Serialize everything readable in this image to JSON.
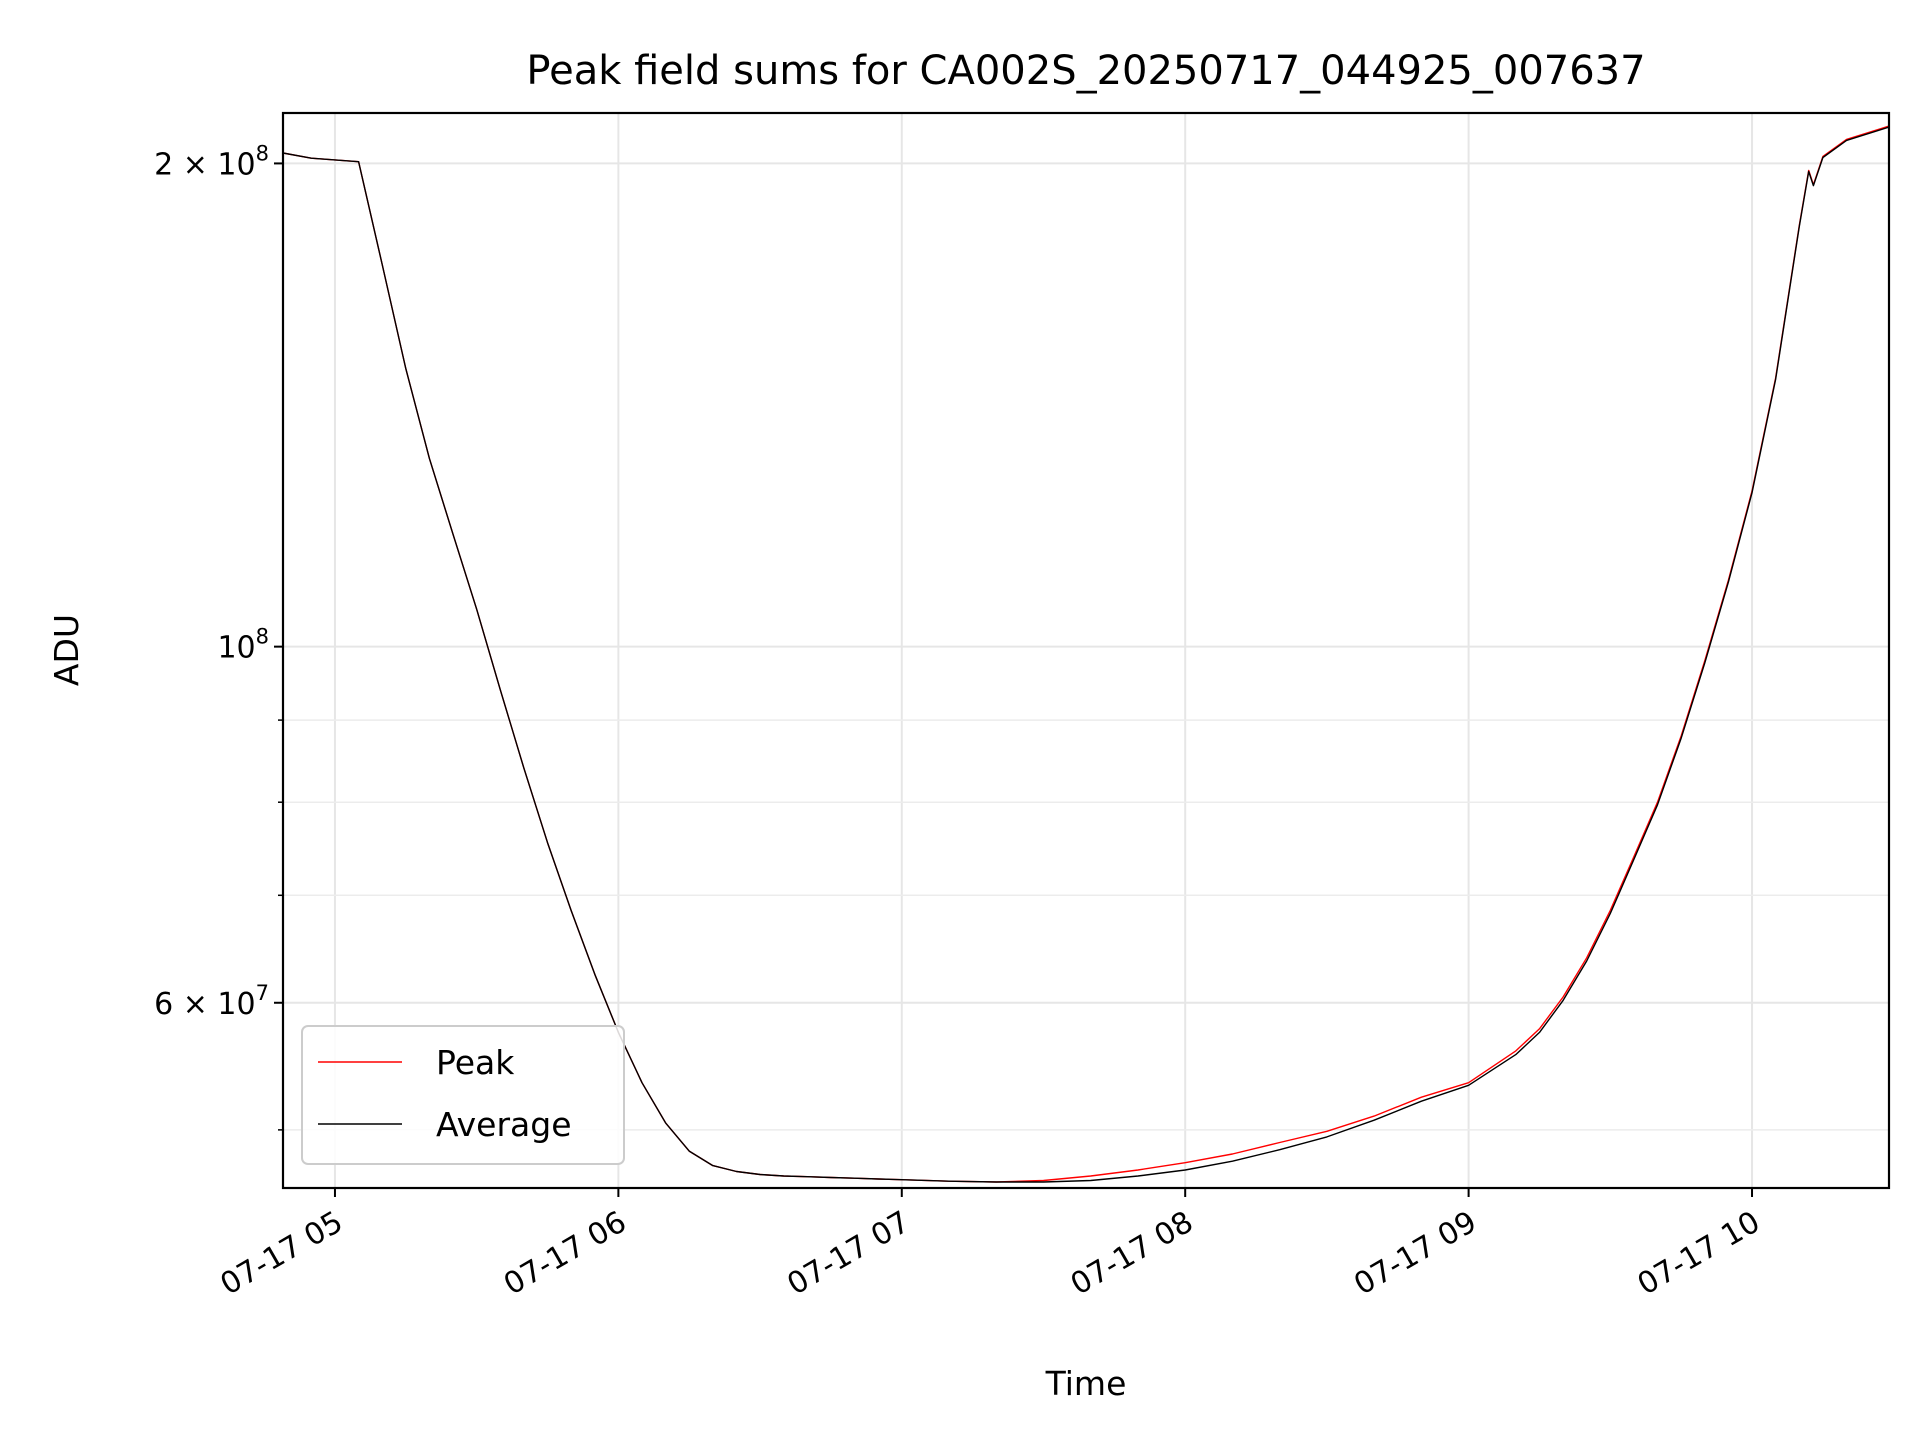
{
  "chart_data": {
    "type": "line",
    "title": "Peak field sums for CA002S_20250717_044925_007637",
    "xlabel": "Time",
    "ylabel": "ADU",
    "x_range": [
      "2025-07-17 04:49",
      "2025-07-17 10:29"
    ],
    "y_scale": "log",
    "ylim": [
      46000000,
      215000000
    ],
    "grid": true,
    "legend_position": "lower-left",
    "x_ticks": [
      {
        "value": "2025-07-17 05:00",
        "label": "07-17 05"
      },
      {
        "value": "2025-07-17 06:00",
        "label": "07-17 06"
      },
      {
        "value": "2025-07-17 07:00",
        "label": "07-17 07"
      },
      {
        "value": "2025-07-17 08:00",
        "label": "07-17 08"
      },
      {
        "value": "2025-07-17 09:00",
        "label": "07-17 09"
      },
      {
        "value": "2025-07-17 10:00",
        "label": "07-17 10"
      }
    ],
    "y_ticks": [
      {
        "value": 200000000,
        "base": "2 × 10",
        "exp": "8"
      },
      {
        "value": 100000000,
        "base": "10",
        "exp": "8"
      },
      {
        "value": 60000000,
        "base": "6 × 10",
        "exp": "7"
      }
    ],
    "y_minor_ticks": [
      50000000,
      70000000,
      80000000,
      90000000
    ],
    "series": [
      {
        "name": "Peak",
        "color": "#ff0000",
        "x": [
          "04:49",
          "04:55",
          "05:05",
          "05:10",
          "05:15",
          "05:20",
          "05:25",
          "05:30",
          "05:35",
          "05:40",
          "05:45",
          "05:50",
          "05:55",
          "06:00",
          "06:05",
          "06:10",
          "06:15",
          "06:20",
          "06:25",
          "06:30",
          "06:35",
          "06:40",
          "06:45",
          "06:50",
          "06:55",
          "07:00",
          "07:10",
          "07:20",
          "07:30",
          "07:40",
          "07:50",
          "08:00",
          "08:10",
          "08:20",
          "08:30",
          "08:40",
          "08:50",
          "09:00",
          "09:10",
          "09:15",
          "09:20",
          "09:25",
          "09:30",
          "09:35",
          "09:40",
          "09:45",
          "09:50",
          "09:55",
          "10:00",
          "10:05",
          "10:10",
          "10:12",
          "10:13",
          "10:15",
          "10:20",
          "10:29"
        ],
        "y": [
          203000000,
          201500000,
          200500000,
          173000000,
          149000000,
          131000000,
          117500000,
          105500000,
          94000000,
          84000000,
          75500000,
          68500000,
          62500000,
          57500000,
          53500000,
          50500000,
          48500000,
          47500000,
          47100000,
          46900000,
          46800000,
          46750000,
          46700000,
          46650000,
          46600000,
          46550000,
          46450000,
          46400000,
          46500000,
          46800000,
          47200000,
          47700000,
          48300000,
          49100000,
          49900000,
          51000000,
          52400000,
          53500000,
          56000000,
          57800000,
          60500000,
          64000000,
          68500000,
          74000000,
          80000000,
          88000000,
          98000000,
          110000000,
          125000000,
          147000000,
          183000000,
          198000000,
          194000000,
          202000000,
          207000000,
          211000000
        ]
      },
      {
        "name": "Average",
        "color": "#000000",
        "x": [
          "04:49",
          "04:55",
          "05:05",
          "05:10",
          "05:15",
          "05:20",
          "05:25",
          "05:30",
          "05:35",
          "05:40",
          "05:45",
          "05:50",
          "05:55",
          "06:00",
          "06:05",
          "06:10",
          "06:15",
          "06:20",
          "06:25",
          "06:30",
          "06:35",
          "06:40",
          "06:45",
          "06:50",
          "06:55",
          "07:00",
          "07:10",
          "07:20",
          "07:30",
          "07:40",
          "07:50",
          "08:00",
          "08:10",
          "08:20",
          "08:30",
          "08:40",
          "08:50",
          "09:00",
          "09:10",
          "09:15",
          "09:20",
          "09:25",
          "09:30",
          "09:35",
          "09:40",
          "09:45",
          "09:50",
          "09:55",
          "10:00",
          "10:05",
          "10:10",
          "10:12",
          "10:13",
          "10:15",
          "10:20",
          "10:29"
        ],
        "y": [
          203000000,
          201500000,
          200500000,
          173000000,
          149000000,
          131000000,
          117500000,
          105500000,
          94000000,
          84000000,
          75500000,
          68500000,
          62500000,
          57500000,
          53500000,
          50500000,
          48500000,
          47500000,
          47100000,
          46900000,
          46800000,
          46750000,
          46700000,
          46650000,
          46600000,
          46550000,
          46450000,
          46400000,
          46400000,
          46500000,
          46800000,
          47200000,
          47800000,
          48600000,
          49500000,
          50700000,
          52100000,
          53300000,
          55700000,
          57500000,
          60200000,
          63700000,
          68200000,
          73700000,
          79700000,
          87700000,
          97700000,
          109700000,
          124700000,
          146700000,
          182700000,
          197700000,
          193700000,
          201700000,
          206700000,
          210700000
        ]
      }
    ]
  }
}
